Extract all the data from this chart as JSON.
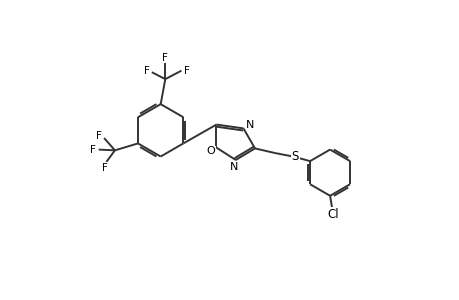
{
  "background_color": "#ffffff",
  "line_color": "#333333",
  "line_width": 1.4,
  "figsize": [
    4.6,
    3.0
  ],
  "dpi": 100,
  "xlim": [
    0,
    9.2
  ],
  "ylim": [
    0,
    6.0
  ]
}
